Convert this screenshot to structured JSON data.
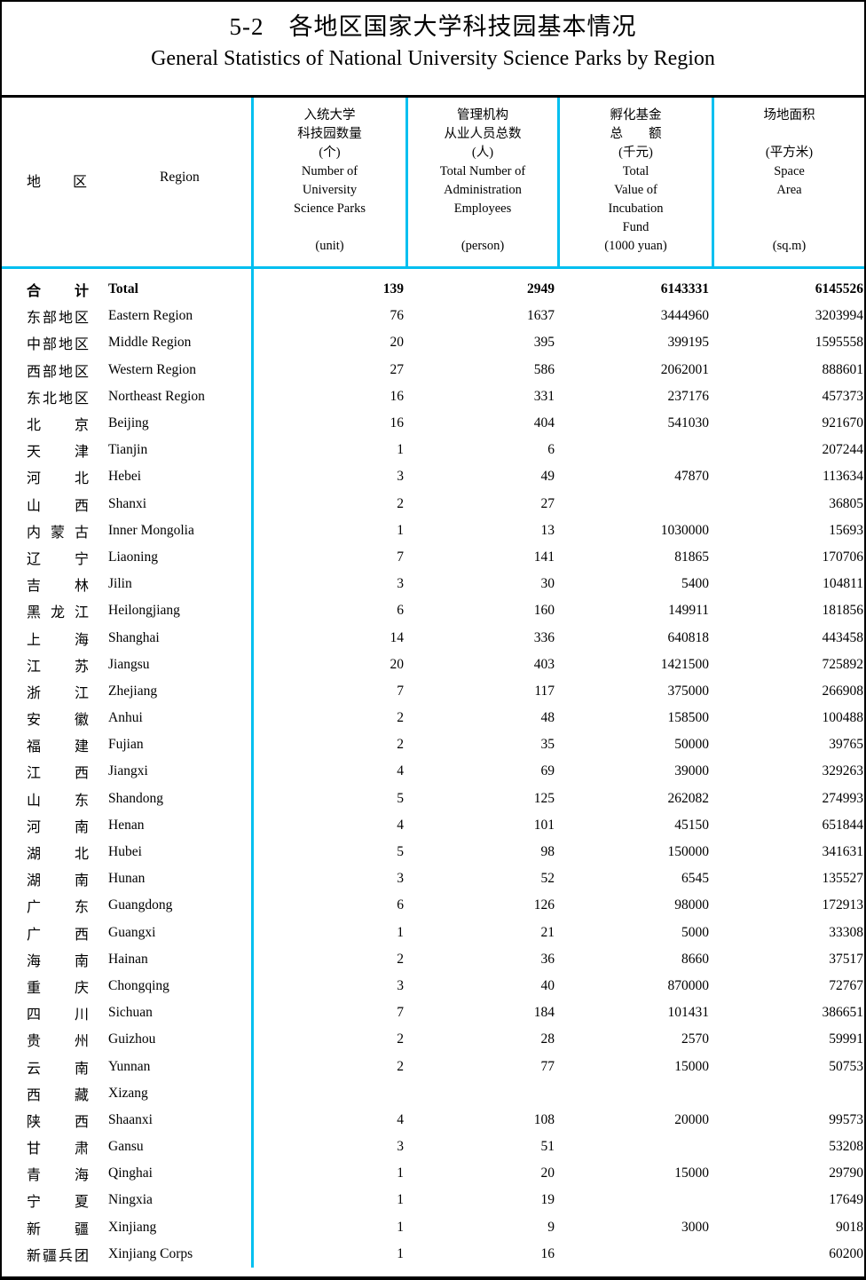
{
  "title": {
    "cn": "5-2　各地区国家大学科技园基本情况",
    "en": "General Statistics of National University Science Parks by Region"
  },
  "colors": {
    "accent": "#00BFF0",
    "frame": "#000000"
  },
  "header": {
    "region_cn": "地区",
    "region_en": "Region",
    "columns": [
      {
        "name": "number-of-university-science-parks",
        "lines": [
          "入统大学",
          "科技园数量",
          "(个)",
          "Number of",
          "University",
          "Science Parks",
          "",
          "(unit)"
        ]
      },
      {
        "name": "total-number-of-administration-employees",
        "lines": [
          "管理机构",
          "从业人员总数",
          "(人)",
          "Total Number of",
          "Administration",
          "Employees",
          "",
          "(person)"
        ]
      },
      {
        "name": "total-value-of-incubation-fund",
        "lines": [
          "孵化基金",
          "总　　额",
          "(千元)",
          "Total",
          "Value of",
          "Incubation",
          "Fund",
          "(1000 yuan)"
        ]
      },
      {
        "name": "space-area",
        "lines": [
          "场地面积",
          "",
          "(平方米)",
          "Space",
          "Area",
          "",
          "",
          "(sq.m)"
        ]
      }
    ]
  },
  "rows": [
    {
      "cn": "合计",
      "en": "Total",
      "bold": true,
      "v": [
        "139",
        "2949",
        "6143331",
        "6145526"
      ]
    },
    {
      "cn": "东部地区",
      "en": "Eastern Region",
      "bold": false,
      "v": [
        "76",
        "1637",
        "3444960",
        "3203994"
      ]
    },
    {
      "cn": "中部地区",
      "en": "Middle Region",
      "bold": false,
      "v": [
        "20",
        "395",
        "399195",
        "1595558"
      ]
    },
    {
      "cn": "西部地区",
      "en": "Western Region",
      "bold": false,
      "v": [
        "27",
        "586",
        "2062001",
        "888601"
      ]
    },
    {
      "cn": "东北地区",
      "en": "Northeast Region",
      "bold": false,
      "v": [
        "16",
        "331",
        "237176",
        "457373"
      ]
    },
    {
      "cn": "北京",
      "en": "Beijing",
      "bold": false,
      "v": [
        "16",
        "404",
        "541030",
        "921670"
      ]
    },
    {
      "cn": "天津",
      "en": "Tianjin",
      "bold": false,
      "v": [
        "1",
        "6",
        "",
        "207244"
      ]
    },
    {
      "cn": "河北",
      "en": "Hebei",
      "bold": false,
      "v": [
        "3",
        "49",
        "47870",
        "113634"
      ]
    },
    {
      "cn": "山西",
      "en": "Shanxi",
      "bold": false,
      "v": [
        "2",
        "27",
        "",
        "36805"
      ]
    },
    {
      "cn": "内蒙古",
      "en": "Inner Mongolia",
      "bold": false,
      "v": [
        "1",
        "13",
        "1030000",
        "15693"
      ]
    },
    {
      "cn": "辽宁",
      "en": "Liaoning",
      "bold": false,
      "v": [
        "7",
        "141",
        "81865",
        "170706"
      ]
    },
    {
      "cn": "吉林",
      "en": "Jilin",
      "bold": false,
      "v": [
        "3",
        "30",
        "5400",
        "104811"
      ]
    },
    {
      "cn": "黑龙江",
      "en": "Heilongjiang",
      "bold": false,
      "v": [
        "6",
        "160",
        "149911",
        "181856"
      ]
    },
    {
      "cn": "上海",
      "en": "Shanghai",
      "bold": false,
      "v": [
        "14",
        "336",
        "640818",
        "443458"
      ]
    },
    {
      "cn": "江苏",
      "en": "Jiangsu",
      "bold": false,
      "v": [
        "20",
        "403",
        "1421500",
        "725892"
      ]
    },
    {
      "cn": "浙江",
      "en": "Zhejiang",
      "bold": false,
      "v": [
        "7",
        "117",
        "375000",
        "266908"
      ]
    },
    {
      "cn": "安徽",
      "en": "Anhui",
      "bold": false,
      "v": [
        "2",
        "48",
        "158500",
        "100488"
      ]
    },
    {
      "cn": "福建",
      "en": "Fujian",
      "bold": false,
      "v": [
        "2",
        "35",
        "50000",
        "39765"
      ]
    },
    {
      "cn": "江西",
      "en": "Jiangxi",
      "bold": false,
      "v": [
        "4",
        "69",
        "39000",
        "329263"
      ]
    },
    {
      "cn": "山东",
      "en": "Shandong",
      "bold": false,
      "v": [
        "5",
        "125",
        "262082",
        "274993"
      ]
    },
    {
      "cn": "河南",
      "en": "Henan",
      "bold": false,
      "v": [
        "4",
        "101",
        "45150",
        "651844"
      ]
    },
    {
      "cn": "湖北",
      "en": "Hubei",
      "bold": false,
      "v": [
        "5",
        "98",
        "150000",
        "341631"
      ]
    },
    {
      "cn": "湖南",
      "en": "Hunan",
      "bold": false,
      "v": [
        "3",
        "52",
        "6545",
        "135527"
      ]
    },
    {
      "cn": "广东",
      "en": "Guangdong",
      "bold": false,
      "v": [
        "6",
        "126",
        "98000",
        "172913"
      ]
    },
    {
      "cn": "广西",
      "en": "Guangxi",
      "bold": false,
      "v": [
        "1",
        "21",
        "5000",
        "33308"
      ]
    },
    {
      "cn": "海南",
      "en": "Hainan",
      "bold": false,
      "v": [
        "2",
        "36",
        "8660",
        "37517"
      ]
    },
    {
      "cn": "重庆",
      "en": "Chongqing",
      "bold": false,
      "v": [
        "3",
        "40",
        "870000",
        "72767"
      ]
    },
    {
      "cn": "四川",
      "en": "Sichuan",
      "bold": false,
      "v": [
        "7",
        "184",
        "101431",
        "386651"
      ]
    },
    {
      "cn": "贵州",
      "en": "Guizhou",
      "bold": false,
      "v": [
        "2",
        "28",
        "2570",
        "59991"
      ]
    },
    {
      "cn": "云南",
      "en": "Yunnan",
      "bold": false,
      "v": [
        "2",
        "77",
        "15000",
        "50753"
      ]
    },
    {
      "cn": "西藏",
      "en": "Xizang",
      "bold": false,
      "v": [
        "",
        "",
        "",
        ""
      ]
    },
    {
      "cn": "陕西",
      "en": "Shaanxi",
      "bold": false,
      "v": [
        "4",
        "108",
        "20000",
        "99573"
      ]
    },
    {
      "cn": "甘肃",
      "en": "Gansu",
      "bold": false,
      "v": [
        "3",
        "51",
        "",
        "53208"
      ]
    },
    {
      "cn": "青海",
      "en": "Qinghai",
      "bold": false,
      "v": [
        "1",
        "20",
        "15000",
        "29790"
      ]
    },
    {
      "cn": "宁夏",
      "en": "Ningxia",
      "bold": false,
      "v": [
        "1",
        "19",
        "",
        "17649"
      ]
    },
    {
      "cn": "新疆",
      "en": "Xinjiang",
      "bold": false,
      "v": [
        "1",
        "9",
        "3000",
        "9018"
      ]
    },
    {
      "cn": "新疆兵团",
      "en": "Xinjiang Corps",
      "bold": false,
      "v": [
        "1",
        "16",
        "",
        "60200"
      ]
    }
  ]
}
